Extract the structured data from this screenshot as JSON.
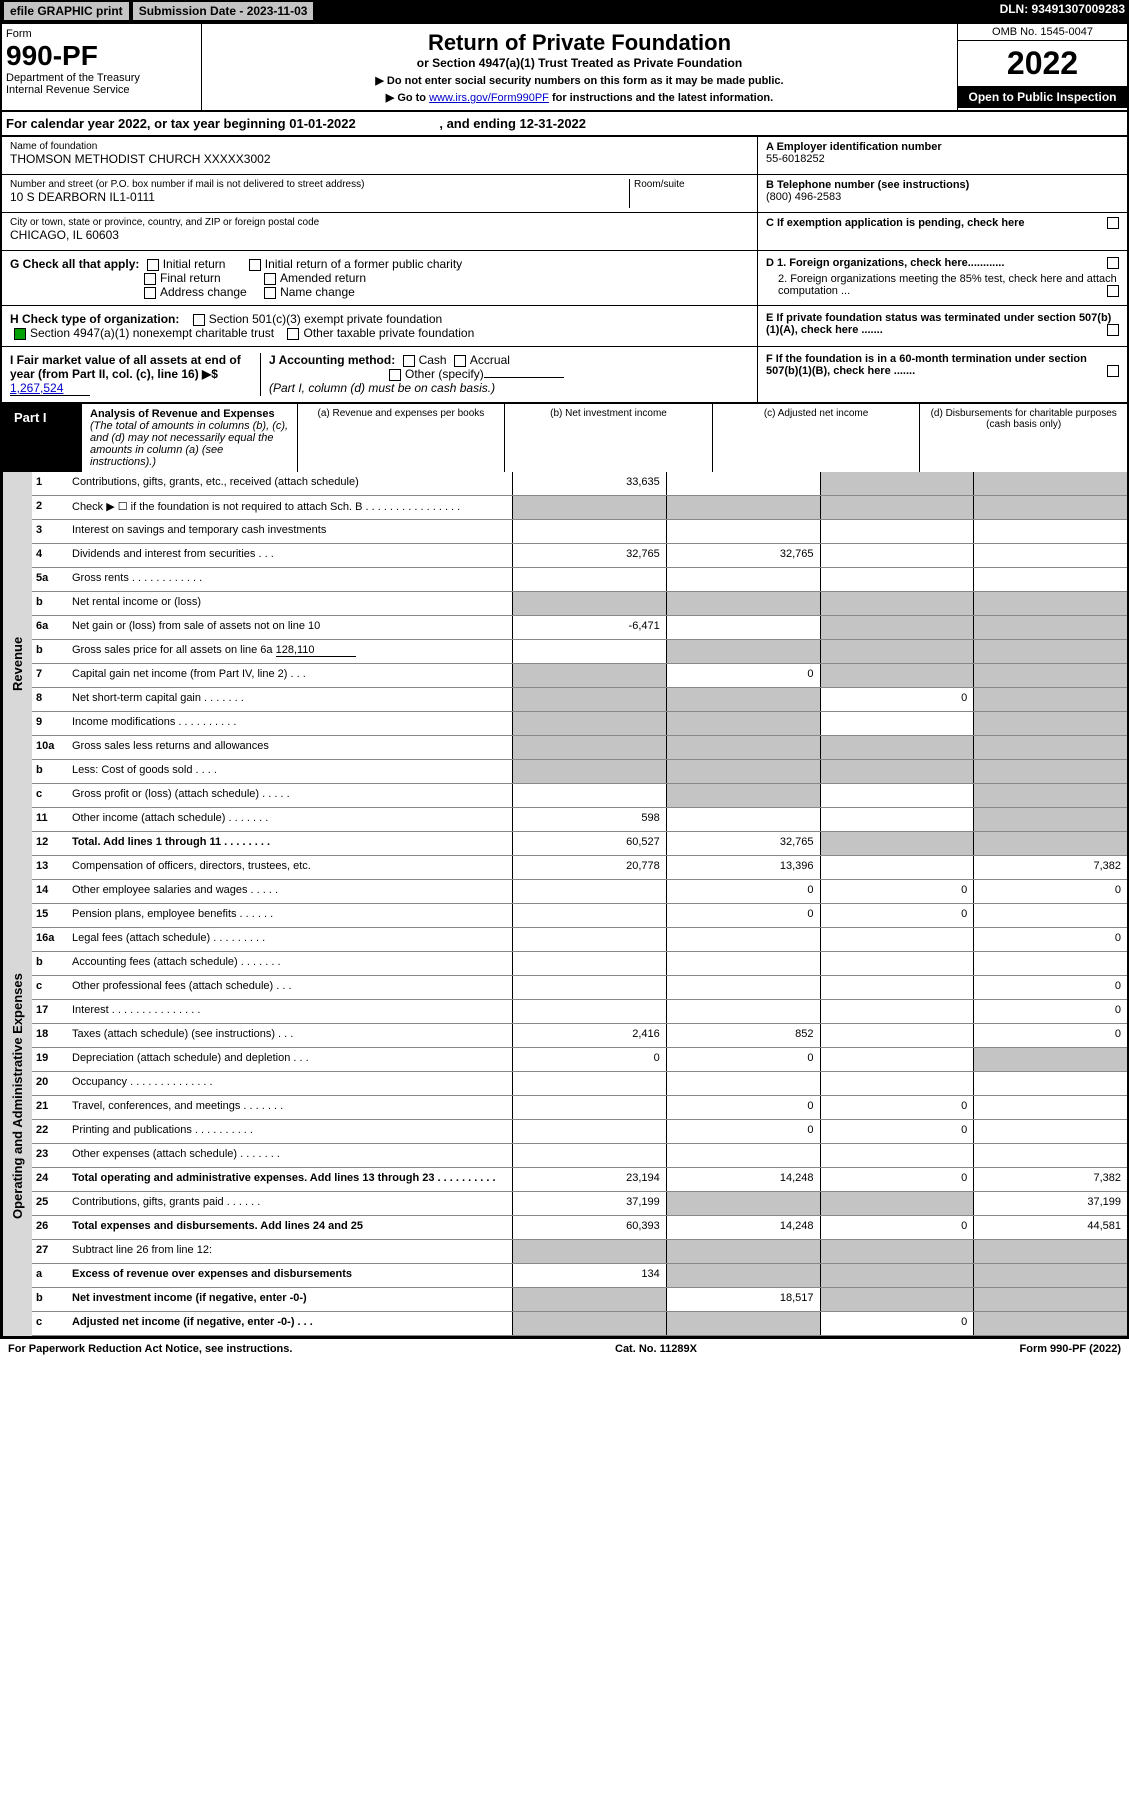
{
  "top": {
    "efile": "efile GRAPHIC print",
    "submission_label": "Submission Date - 2023-11-03",
    "dln_label": "DLN: 93491307009283"
  },
  "header": {
    "form_word": "Form",
    "form_number": "990-PF",
    "dept": "Department of the Treasury",
    "irs": "Internal Revenue Service",
    "title": "Return of Private Foundation",
    "subtitle": "or Section 4947(a)(1) Trust Treated as Private Foundation",
    "note1": "▶ Do not enter social security numbers on this form as it may be made public.",
    "note2_pre": "▶ Go to ",
    "note2_link": "www.irs.gov/Form990PF",
    "note2_post": " for instructions and the latest information.",
    "omb": "OMB No. 1545-0047",
    "year": "2022",
    "open": "Open to Public Inspection"
  },
  "calyear": {
    "text_pre": "For calendar year 2022, or tax year beginning ",
    "begin": "01-01-2022",
    "text_mid": " , and ending ",
    "end": "12-31-2022"
  },
  "id": {
    "name_lbl": "Name of foundation",
    "name": "THOMSON METHODIST CHURCH XXXXX3002",
    "addr_lbl": "Number and street (or P.O. box number if mail is not delivered to street address)",
    "addr": "10 S DEARBORN IL1-0111",
    "room_lbl": "Room/suite",
    "city_lbl": "City or town, state or province, country, and ZIP or foreign postal code",
    "city": "CHICAGO, IL  60603",
    "ein_lbl": "A Employer identification number",
    "ein": "55-6018252",
    "phone_lbl": "B Telephone number (see instructions)",
    "phone": "(800) 496-2583",
    "c_lbl": "C If exemption application is pending, check here"
  },
  "g": {
    "lbl": "G Check all that apply:",
    "initial": "Initial return",
    "initial_former": "Initial return of a former public charity",
    "final": "Final return",
    "amended": "Amended return",
    "addr_change": "Address change",
    "name_change": "Name change"
  },
  "d": {
    "d1": "D 1. Foreign organizations, check here............",
    "d2": "2. Foreign organizations meeting the 85% test, check here and attach computation ..."
  },
  "h": {
    "lbl": "H Check type of organization:",
    "s501": "Section 501(c)(3) exempt private foundation",
    "s4947": "Section 4947(a)(1) nonexempt charitable trust",
    "other_tax": "Other taxable private foundation"
  },
  "e": {
    "lbl": "E  If private foundation status was terminated under section 507(b)(1)(A), check here ......."
  },
  "i": {
    "lbl": "I Fair market value of all assets at end of year (from Part II, col. (c), line 16) ▶$",
    "val": "1,267,524"
  },
  "j": {
    "lbl": "J Accounting method:",
    "cash": "Cash",
    "accrual": "Accrual",
    "other": "Other (specify)",
    "note": "(Part I, column (d) must be on cash basis.)"
  },
  "f": {
    "lbl": "F  If the foundation is in a 60-month termination under section 507(b)(1)(B), check here ......."
  },
  "part1": {
    "tag": "Part I",
    "title": "Analysis of Revenue and Expenses",
    "note": " (The total of amounts in columns (b), (c), and (d) may not necessarily equal the amounts in column (a) (see instructions).)",
    "col_a": "(a) Revenue and expenses per books",
    "col_b": "(b) Net investment income",
    "col_c": "(c) Adjusted net income",
    "col_d": "(d) Disbursements for charitable purposes (cash basis only)"
  },
  "sides": {
    "revenue": "Revenue",
    "expenses": "Operating and Administrative Expenses"
  },
  "lines": {
    "1": {
      "n": "1",
      "d": "Contributions, gifts, grants, etc., received (attach schedule)",
      "a": "33,635"
    },
    "2": {
      "n": "2",
      "d": "Check ▶ ☐ if the foundation is not required to attach Sch. B   .   .   .   .   .   .   .   .   .   .   .   .   .   .   .   ."
    },
    "3": {
      "n": "3",
      "d": "Interest on savings and temporary cash investments"
    },
    "4": {
      "n": "4",
      "d": "Dividends and interest from securities   .   .   .",
      "a": "32,765",
      "b": "32,765"
    },
    "5a": {
      "n": "5a",
      "d": "Gross rents   .   .   .   .   .   .   .   .   .   .   .   ."
    },
    "5b": {
      "n": "b",
      "d": "Net rental income or (loss)"
    },
    "6a": {
      "n": "6a",
      "d": "Net gain or (loss) from sale of assets not on line 10",
      "a": "-6,471"
    },
    "6b": {
      "n": "b",
      "d": "Gross sales price for all assets on line 6a",
      "inline": "128,110"
    },
    "7": {
      "n": "7",
      "d": "Capital gain net income (from Part IV, line 2)   .   .   .",
      "b": "0"
    },
    "8": {
      "n": "8",
      "d": "Net short-term capital gain   .   .   .   .   .   .   .",
      "c": "0"
    },
    "9": {
      "n": "9",
      "d": "Income modifications .   .   .   .   .   .   .   .   .   ."
    },
    "10a": {
      "n": "10a",
      "d": "Gross sales less returns and allowances"
    },
    "10b": {
      "n": "b",
      "d": "Less: Cost of goods sold   .   .   .   ."
    },
    "10c": {
      "n": "c",
      "d": "Gross profit or (loss) (attach schedule)   .   .   .   .   ."
    },
    "11": {
      "n": "11",
      "d": "Other income (attach schedule)   .   .   .   .   .   .   .",
      "a": "598"
    },
    "12": {
      "n": "12",
      "d": "Total. Add lines 1 through 11   .   .   .   .   .   .   .   .",
      "a": "60,527",
      "b": "32,765",
      "bold": true
    },
    "13": {
      "n": "13",
      "d": "Compensation of officers, directors, trustees, etc.",
      "a": "20,778",
      "b": "13,396",
      "d4": "7,382"
    },
    "14": {
      "n": "14",
      "d": "Other employee salaries and wages   .   .   .   .   .",
      "b": "0",
      "c": "0",
      "d4": "0"
    },
    "15": {
      "n": "15",
      "d": "Pension plans, employee benefits   .   .   .   .   .   .",
      "b": "0",
      "c": "0"
    },
    "16a": {
      "n": "16a",
      "d": "Legal fees (attach schedule) .   .   .   .   .   .   .   .   .",
      "d4": "0"
    },
    "16b": {
      "n": "b",
      "d": "Accounting fees (attach schedule) .   .   .   .   .   .   ."
    },
    "16c": {
      "n": "c",
      "d": "Other professional fees (attach schedule)   .   .   .",
      "d4": "0"
    },
    "17": {
      "n": "17",
      "d": "Interest .   .   .   .   .   .   .   .   .   .   .   .   .   .   .",
      "d4": "0"
    },
    "18": {
      "n": "18",
      "d": "Taxes (attach schedule) (see instructions)   .   .   .",
      "a": "2,416",
      "b": "852",
      "d4": "0"
    },
    "19": {
      "n": "19",
      "d": "Depreciation (attach schedule) and depletion   .   .   .",
      "a": "0",
      "b": "0"
    },
    "20": {
      "n": "20",
      "d": "Occupancy .   .   .   .   .   .   .   .   .   .   .   .   .   ."
    },
    "21": {
      "n": "21",
      "d": "Travel, conferences, and meetings .   .   .   .   .   .   .",
      "b": "0",
      "c": "0"
    },
    "22": {
      "n": "22",
      "d": "Printing and publications .   .   .   .   .   .   .   .   .   .",
      "b": "0",
      "c": "0"
    },
    "23": {
      "n": "23",
      "d": "Other expenses (attach schedule) .   .   .   .   .   .   ."
    },
    "24": {
      "n": "24",
      "d": "Total operating and administrative expenses. Add lines 13 through 23   .   .   .   .   .   .   .   .   .   .",
      "a": "23,194",
      "b": "14,248",
      "c": "0",
      "d4": "7,382",
      "bold": true
    },
    "25": {
      "n": "25",
      "d": "Contributions, gifts, grants paid   .   .   .   .   .   .",
      "a": "37,199",
      "d4": "37,199"
    },
    "26": {
      "n": "26",
      "d": "Total expenses and disbursements. Add lines 24 and 25",
      "a": "60,393",
      "b": "14,248",
      "c": "0",
      "d4": "44,581",
      "bold": true
    },
    "27": {
      "n": "27",
      "d": "Subtract line 26 from line 12:"
    },
    "27a": {
      "n": "a",
      "d": "Excess of revenue over expenses and disbursements",
      "a": "134",
      "bold": true
    },
    "27b": {
      "n": "b",
      "d": "Net investment income (if negative, enter -0-)",
      "b": "18,517",
      "bold": true
    },
    "27c": {
      "n": "c",
      "d": "Adjusted net income (if negative, enter -0-)   .   .   .",
      "c": "0",
      "bold": true
    }
  },
  "footer": {
    "left": "For Paperwork Reduction Act Notice, see instructions.",
    "mid": "Cat. No. 11289X",
    "right": "Form 990-PF (2022)"
  }
}
